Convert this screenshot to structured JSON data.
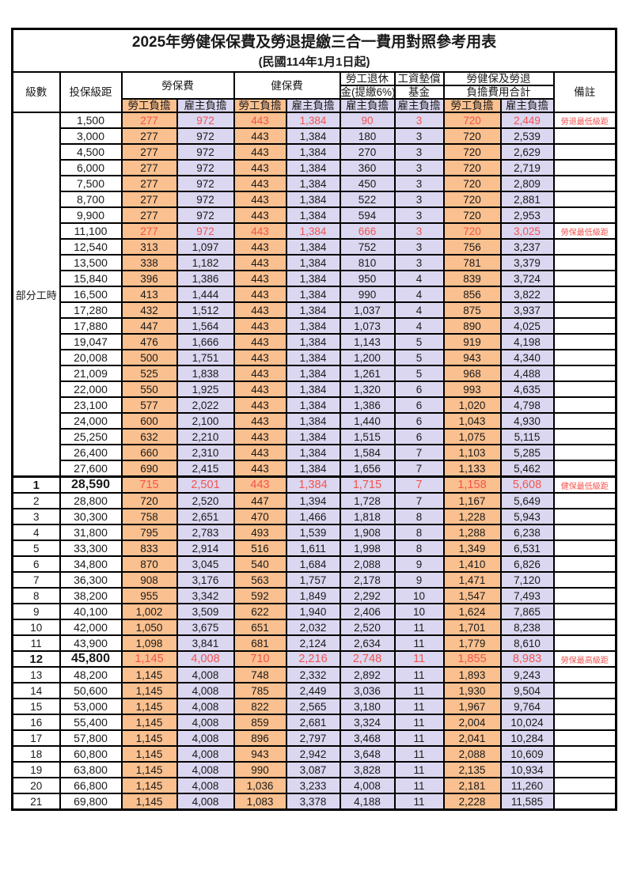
{
  "title": "2025年勞健保保費及勞退提繳三合一費用對照參考用表",
  "subtitle": "(民國114年1月1日起)",
  "colors": {
    "employee_burden_bg": "#FAC08F",
    "employer_burden_bg": "#DBD7F0",
    "highlight_text": "#F4534F"
  },
  "header": {
    "level": "級數",
    "bracket": "投保級距",
    "labor_insurance": "勞保費",
    "health_insurance": "健保費",
    "pension_line1": "勞工退休",
    "pension_line2": "金(提繳6%)",
    "wage_fund_line1": "工資墊償",
    "wage_fund_line2": "基金",
    "total_line1": "勞健保及勞退",
    "total_line2": "負擔費用合計",
    "employee_burden": "勞工負擔",
    "employer_burden": "雇主負擔",
    "remark": "備註"
  },
  "part_time_label": "部分工時",
  "part_time_rowspan": 23,
  "rows": [
    {
      "level": "",
      "bracket": "1,500",
      "values": [
        "277",
        "972",
        "443",
        "1,384",
        "90",
        "3",
        "720",
        "2,449"
      ],
      "note": "勞退最低級距",
      "highlight": true,
      "emphasis": false
    },
    {
      "level": "",
      "bracket": "3,000",
      "values": [
        "277",
        "972",
        "443",
        "1,384",
        "180",
        "3",
        "720",
        "2,539"
      ],
      "note": "",
      "highlight": false,
      "emphasis": false
    },
    {
      "level": "",
      "bracket": "4,500",
      "values": [
        "277",
        "972",
        "443",
        "1,384",
        "270",
        "3",
        "720",
        "2,629"
      ],
      "note": "",
      "highlight": false,
      "emphasis": false
    },
    {
      "level": "",
      "bracket": "6,000",
      "values": [
        "277",
        "972",
        "443",
        "1,384",
        "360",
        "3",
        "720",
        "2,719"
      ],
      "note": "",
      "highlight": false,
      "emphasis": false
    },
    {
      "level": "",
      "bracket": "7,500",
      "values": [
        "277",
        "972",
        "443",
        "1,384",
        "450",
        "3",
        "720",
        "2,809"
      ],
      "note": "",
      "highlight": false,
      "emphasis": false
    },
    {
      "level": "",
      "bracket": "8,700",
      "values": [
        "277",
        "972",
        "443",
        "1,384",
        "522",
        "3",
        "720",
        "2,881"
      ],
      "note": "",
      "highlight": false,
      "emphasis": false
    },
    {
      "level": "",
      "bracket": "9,900",
      "values": [
        "277",
        "972",
        "443",
        "1,384",
        "594",
        "3",
        "720",
        "2,953"
      ],
      "note": "",
      "highlight": false,
      "emphasis": false
    },
    {
      "level": "",
      "bracket": "11,100",
      "values": [
        "277",
        "972",
        "443",
        "1,384",
        "666",
        "3",
        "720",
        "3,025"
      ],
      "note": "勞保最低級距",
      "highlight": true,
      "emphasis": false
    },
    {
      "level": "",
      "bracket": "12,540",
      "values": [
        "313",
        "1,097",
        "443",
        "1,384",
        "752",
        "3",
        "756",
        "3,237"
      ],
      "note": "",
      "highlight": false,
      "emphasis": false
    },
    {
      "level": "",
      "bracket": "13,500",
      "values": [
        "338",
        "1,182",
        "443",
        "1,384",
        "810",
        "3",
        "781",
        "3,379"
      ],
      "note": "",
      "highlight": false,
      "emphasis": false
    },
    {
      "level": "",
      "bracket": "15,840",
      "values": [
        "396",
        "1,386",
        "443",
        "1,384",
        "950",
        "4",
        "839",
        "3,724"
      ],
      "note": "",
      "highlight": false,
      "emphasis": false
    },
    {
      "level": "",
      "bracket": "16,500",
      "values": [
        "413",
        "1,444",
        "443",
        "1,384",
        "990",
        "4",
        "856",
        "3,822"
      ],
      "note": "",
      "highlight": false,
      "emphasis": false
    },
    {
      "level": "",
      "bracket": "17,280",
      "values": [
        "432",
        "1,512",
        "443",
        "1,384",
        "1,037",
        "4",
        "875",
        "3,937"
      ],
      "note": "",
      "highlight": false,
      "emphasis": false
    },
    {
      "level": "",
      "bracket": "17,880",
      "values": [
        "447",
        "1,564",
        "443",
        "1,384",
        "1,073",
        "4",
        "890",
        "4,025"
      ],
      "note": "",
      "highlight": false,
      "emphasis": false
    },
    {
      "level": "",
      "bracket": "19,047",
      "values": [
        "476",
        "1,666",
        "443",
        "1,384",
        "1,143",
        "5",
        "919",
        "4,198"
      ],
      "note": "",
      "highlight": false,
      "emphasis": false
    },
    {
      "level": "",
      "bracket": "20,008",
      "values": [
        "500",
        "1,751",
        "443",
        "1,384",
        "1,200",
        "5",
        "943",
        "4,340"
      ],
      "note": "",
      "highlight": false,
      "emphasis": false
    },
    {
      "level": "",
      "bracket": "21,009",
      "values": [
        "525",
        "1,838",
        "443",
        "1,384",
        "1,261",
        "5",
        "968",
        "4,488"
      ],
      "note": "",
      "highlight": false,
      "emphasis": false
    },
    {
      "level": "",
      "bracket": "22,000",
      "values": [
        "550",
        "1,925",
        "443",
        "1,384",
        "1,320",
        "6",
        "993",
        "4,635"
      ],
      "note": "",
      "highlight": false,
      "emphasis": false
    },
    {
      "level": "",
      "bracket": "23,100",
      "values": [
        "577",
        "2,022",
        "443",
        "1,384",
        "1,386",
        "6",
        "1,020",
        "4,798"
      ],
      "note": "",
      "highlight": false,
      "emphasis": false
    },
    {
      "level": "",
      "bracket": "24,000",
      "values": [
        "600",
        "2,100",
        "443",
        "1,384",
        "1,440",
        "6",
        "1,043",
        "4,930"
      ],
      "note": "",
      "highlight": false,
      "emphasis": false
    },
    {
      "level": "",
      "bracket": "25,250",
      "values": [
        "632",
        "2,210",
        "443",
        "1,384",
        "1,515",
        "6",
        "1,075",
        "5,115"
      ],
      "note": "",
      "highlight": false,
      "emphasis": false
    },
    {
      "level": "",
      "bracket": "26,400",
      "values": [
        "660",
        "2,310",
        "443",
        "1,384",
        "1,584",
        "7",
        "1,103",
        "5,285"
      ],
      "note": "",
      "highlight": false,
      "emphasis": false
    },
    {
      "level": "",
      "bracket": "27,600",
      "values": [
        "690",
        "2,415",
        "443",
        "1,384",
        "1,656",
        "7",
        "1,133",
        "5,462"
      ],
      "note": "",
      "highlight": false,
      "emphasis": false
    },
    {
      "level": "1",
      "bracket": "28,590",
      "values": [
        "715",
        "2,501",
        "443",
        "1,384",
        "1,715",
        "7",
        "1,158",
        "5,608"
      ],
      "note": "健保最低級距",
      "highlight": true,
      "emphasis": true,
      "section_start": true
    },
    {
      "level": "2",
      "bracket": "28,800",
      "values": [
        "720",
        "2,520",
        "447",
        "1,394",
        "1,728",
        "7",
        "1,167",
        "5,649"
      ],
      "note": "",
      "highlight": false,
      "emphasis": false
    },
    {
      "level": "3",
      "bracket": "30,300",
      "values": [
        "758",
        "2,651",
        "470",
        "1,466",
        "1,818",
        "8",
        "1,228",
        "5,943"
      ],
      "note": "",
      "highlight": false,
      "emphasis": false
    },
    {
      "level": "4",
      "bracket": "31,800",
      "values": [
        "795",
        "2,783",
        "493",
        "1,539",
        "1,908",
        "8",
        "1,288",
        "6,238"
      ],
      "note": "",
      "highlight": false,
      "emphasis": false
    },
    {
      "level": "5",
      "bracket": "33,300",
      "values": [
        "833",
        "2,914",
        "516",
        "1,611",
        "1,998",
        "8",
        "1,349",
        "6,531"
      ],
      "note": "",
      "highlight": false,
      "emphasis": false
    },
    {
      "level": "6",
      "bracket": "34,800",
      "values": [
        "870",
        "3,045",
        "540",
        "1,684",
        "2,088",
        "9",
        "1,410",
        "6,826"
      ],
      "note": "",
      "highlight": false,
      "emphasis": false
    },
    {
      "level": "7",
      "bracket": "36,300",
      "values": [
        "908",
        "3,176",
        "563",
        "1,757",
        "2,178",
        "9",
        "1,471",
        "7,120"
      ],
      "note": "",
      "highlight": false,
      "emphasis": false
    },
    {
      "level": "8",
      "bracket": "38,200",
      "values": [
        "955",
        "3,342",
        "592",
        "1,849",
        "2,292",
        "10",
        "1,547",
        "7,493"
      ],
      "note": "",
      "highlight": false,
      "emphasis": false
    },
    {
      "level": "9",
      "bracket": "40,100",
      "values": [
        "1,002",
        "3,509",
        "622",
        "1,940",
        "2,406",
        "10",
        "1,624",
        "7,865"
      ],
      "note": "",
      "highlight": false,
      "emphasis": false
    },
    {
      "level": "10",
      "bracket": "42,000",
      "values": [
        "1,050",
        "3,675",
        "651",
        "2,032",
        "2,520",
        "11",
        "1,701",
        "8,238"
      ],
      "note": "",
      "highlight": false,
      "emphasis": false
    },
    {
      "level": "11",
      "bracket": "43,900",
      "values": [
        "1,098",
        "3,841",
        "681",
        "2,124",
        "2,634",
        "11",
        "1,779",
        "8,610"
      ],
      "note": "",
      "highlight": false,
      "emphasis": false
    },
    {
      "level": "12",
      "bracket": "45,800",
      "values": [
        "1,145",
        "4,008",
        "710",
        "2,216",
        "2,748",
        "11",
        "1,855",
        "8,983"
      ],
      "note": "勞保最高級距",
      "highlight": true,
      "emphasis": true
    },
    {
      "level": "13",
      "bracket": "48,200",
      "values": [
        "1,145",
        "4,008",
        "748",
        "2,332",
        "2,892",
        "11",
        "1,893",
        "9,243"
      ],
      "note": "",
      "highlight": false,
      "emphasis": false
    },
    {
      "level": "14",
      "bracket": "50,600",
      "values": [
        "1,145",
        "4,008",
        "785",
        "2,449",
        "3,036",
        "11",
        "1,930",
        "9,504"
      ],
      "note": "",
      "highlight": false,
      "emphasis": false
    },
    {
      "level": "15",
      "bracket": "53,000",
      "values": [
        "1,145",
        "4,008",
        "822",
        "2,565",
        "3,180",
        "11",
        "1,967",
        "9,764"
      ],
      "note": "",
      "highlight": false,
      "emphasis": false
    },
    {
      "level": "16",
      "bracket": "55,400",
      "values": [
        "1,145",
        "4,008",
        "859",
        "2,681",
        "3,324",
        "11",
        "2,004",
        "10,024"
      ],
      "note": "",
      "highlight": false,
      "emphasis": false
    },
    {
      "level": "17",
      "bracket": "57,800",
      "values": [
        "1,145",
        "4,008",
        "896",
        "2,797",
        "3,468",
        "11",
        "2,041",
        "10,284"
      ],
      "note": "",
      "highlight": false,
      "emphasis": false
    },
    {
      "level": "18",
      "bracket": "60,800",
      "values": [
        "1,145",
        "4,008",
        "943",
        "2,942",
        "3,648",
        "11",
        "2,088",
        "10,609"
      ],
      "note": "",
      "highlight": false,
      "emphasis": false
    },
    {
      "level": "19",
      "bracket": "63,800",
      "values": [
        "1,145",
        "4,008",
        "990",
        "3,087",
        "3,828",
        "11",
        "2,135",
        "10,934"
      ],
      "note": "",
      "highlight": false,
      "emphasis": false
    },
    {
      "level": "20",
      "bracket": "66,800",
      "values": [
        "1,145",
        "4,008",
        "1,036",
        "3,233",
        "4,008",
        "11",
        "2,181",
        "11,260"
      ],
      "note": "",
      "highlight": false,
      "emphasis": false
    },
    {
      "level": "21",
      "bracket": "69,800",
      "values": [
        "1,145",
        "4,008",
        "1,083",
        "3,378",
        "4,188",
        "11",
        "2,228",
        "11,585"
      ],
      "note": "",
      "highlight": false,
      "emphasis": false
    }
  ]
}
